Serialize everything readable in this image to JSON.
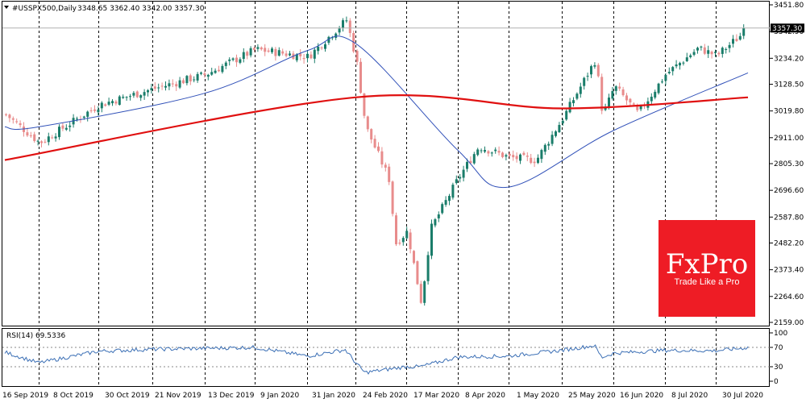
{
  "header": {
    "symbol": "#USSPX500,Daily",
    "ohlc": "3348.65 3362.40 3342.00 3357.30"
  },
  "price_tag": "3357.30",
  "rsi_label": "RSI(14) 69.5336",
  "brand": {
    "logo": "FxPro",
    "tagline": "Trade Like a Pro",
    "color": "#ee1c25"
  },
  "colors": {
    "bull": "#1a7d6a",
    "bear": "#e88c8c",
    "ma_slow": "#e01010",
    "ma_fast": "#3050b8",
    "rsi": "#3b6fb5",
    "grid": "#000000"
  },
  "chart_data": {
    "type": "candlestick",
    "title": "#USSPX500,Daily",
    "x_tick_labels": [
      "16 Sep 2019",
      "8 Oct 2019",
      "30 Oct 2019",
      "21 Nov 2019",
      "13 Dec 2019",
      "9 Jan 2020",
      "31 Jan 2020",
      "24 Feb 2020",
      "17 Mar 2020",
      "8 Apr 2020",
      "1 May 2020",
      "25 May 2020",
      "16 Jun 2020",
      "8 Jul 2020",
      "30 Jul 2020"
    ],
    "y_tick_labels": [
      "3451.80",
      "3342.90",
      "3234.20",
      "3128.50",
      "3019.80",
      "2911.00",
      "2805.30",
      "2696.60",
      "2587.80",
      "2482.20",
      "2373.40",
      "2264.60",
      "2159.00"
    ],
    "ylim": [
      2159.0,
      3451.8
    ],
    "last_price": 3357.3,
    "closes": [
      {
        "date": "16 Sep 2019",
        "close": 3005
      },
      {
        "date": "8 Oct 2019",
        "close": 2890
      },
      {
        "date": "30 Oct 2019",
        "close": 3045
      },
      {
        "date": "21 Nov 2019",
        "close": 3110
      },
      {
        "date": "13 Dec 2019",
        "close": 3168
      },
      {
        "date": "9 Jan 2020",
        "close": 3270
      },
      {
        "date": "31 Jan 2020",
        "close": 3240
      },
      {
        "date": "19 Feb 2020",
        "close": 3390
      },
      {
        "date": "24 Feb 2020",
        "close": 3225
      },
      {
        "date": "28 Feb 2020",
        "close": 2955
      },
      {
        "date": "9 Mar 2020",
        "close": 2745
      },
      {
        "date": "12 Mar 2020",
        "close": 2480
      },
      {
        "date": "17 Mar 2020",
        "close": 2530
      },
      {
        "date": "23 Mar 2020",
        "close": 2237
      },
      {
        "date": "27 Mar 2020",
        "close": 2540
      },
      {
        "date": "8 Apr 2020",
        "close": 2750
      },
      {
        "date": "17 Apr 2020",
        "close": 2875
      },
      {
        "date": "1 May 2020",
        "close": 2830
      },
      {
        "date": "13 May 2020",
        "close": 2820
      },
      {
        "date": "25 May 2020",
        "close": 2990
      },
      {
        "date": "8 Jun 2020",
        "close": 3230
      },
      {
        "date": "11 Jun 2020",
        "close": 3000
      },
      {
        "date": "16 Jun 2020",
        "close": 3120
      },
      {
        "date": "26 Jun 2020",
        "close": 3010
      },
      {
        "date": "8 Jul 2020",
        "close": 3170
      },
      {
        "date": "22 Jul 2020",
        "close": 3275
      },
      {
        "date": "30 Jul 2020",
        "close": 3245
      },
      {
        "date": "4 Aug 2020",
        "close": 3357.3
      }
    ],
    "ma_slow": [
      {
        "date": "16 Sep 2019",
        "value": 2820
      },
      {
        "date": "24 Feb 2020",
        "value": 3075
      },
      {
        "date": "25 May 2020",
        "value": 3030
      },
      {
        "date": "4 Aug 2020",
        "value": 3075
      }
    ],
    "ma_fast": [
      {
        "date": "16 Sep 2019",
        "value": 2955
      },
      {
        "date": "8 Oct 2019",
        "value": 2955
      },
      {
        "date": "13 Dec 2019",
        "value": 3092
      },
      {
        "date": "31 Jan 2020",
        "value": 3265
      },
      {
        "date": "24 Feb 2020",
        "value": 3295
      },
      {
        "date": "8 Apr 2020",
        "value": 2860
      },
      {
        "date": "1 May 2020",
        "value": 2710
      },
      {
        "date": "16 Jun 2020",
        "value": 2940
      },
      {
        "date": "4 Aug 2020",
        "value": 3175
      }
    ],
    "rsi": {
      "name": "RSI(14)",
      "last": 69.5336,
      "levels": [
        70,
        30
      ],
      "axis_labels": [
        "100",
        "70",
        "30",
        "0"
      ],
      "values": [
        {
          "date": "16 Sep 2019",
          "value": 60
        },
        {
          "date": "8 Oct 2019",
          "value": 38
        },
        {
          "date": "30 Oct 2019",
          "value": 62
        },
        {
          "date": "21 Nov 2019",
          "value": 66
        },
        {
          "date": "13 Dec 2019",
          "value": 68
        },
        {
          "date": "9 Jan 2020",
          "value": 70
        },
        {
          "date": "31 Jan 2020",
          "value": 52
        },
        {
          "date": "19 Feb 2020",
          "value": 65
        },
        {
          "date": "28 Feb 2020",
          "value": 18
        },
        {
          "date": "17 Mar 2020",
          "value": 30
        },
        {
          "date": "23 Mar 2020",
          "value": 30
        },
        {
          "date": "8 Apr 2020",
          "value": 50
        },
        {
          "date": "1 May 2020",
          "value": 52
        },
        {
          "date": "25 May 2020",
          "value": 64
        },
        {
          "date": "8 Jun 2020",
          "value": 74
        },
        {
          "date": "11 Jun 2020",
          "value": 49
        },
        {
          "date": "16 Jun 2020",
          "value": 58
        },
        {
          "date": "8 Jul 2020",
          "value": 64
        },
        {
          "date": "30 Jul 2020",
          "value": 63
        },
        {
          "date": "4 Aug 2020",
          "value": 69.5336
        }
      ]
    }
  }
}
